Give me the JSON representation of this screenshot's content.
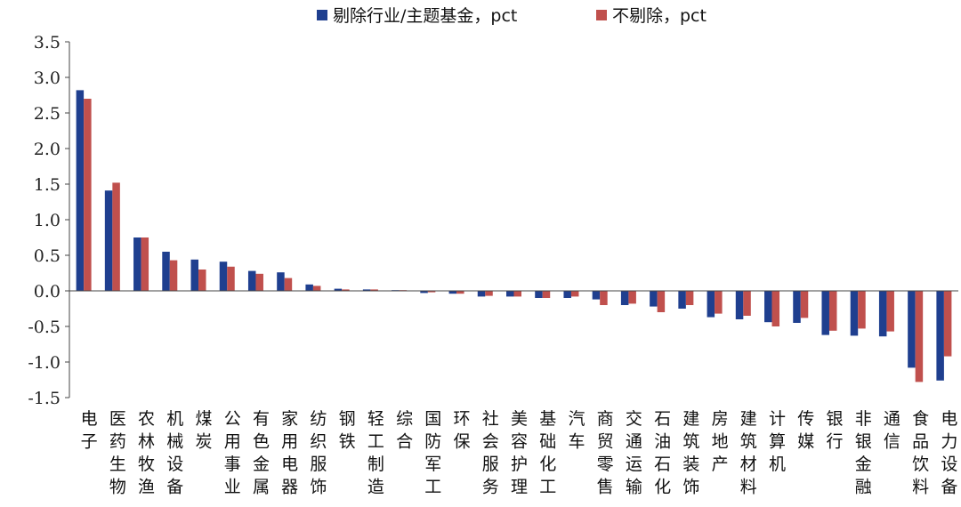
{
  "chart_data": {
    "type": "bar",
    "title": "",
    "xlabel": "",
    "ylabel": "",
    "ylim": [
      -1.5,
      3.5
    ],
    "yticks": [
      "3.5",
      "3.0",
      "2.5",
      "2.0",
      "1.5",
      "1.0",
      "0.5",
      "0.0",
      "-0.5",
      "-1.0",
      "-1.5"
    ],
    "grid": false,
    "legend_position": "top-center",
    "categories": [
      "电子",
      "医药生物",
      "农林牧渔",
      "机械设备",
      "煤炭",
      "公用事业",
      "有色金属",
      "家用电器",
      "纺织服饰",
      "钢铁",
      "轻工制造",
      "综合",
      "国防军工",
      "环保",
      "社会服务",
      "美容护理",
      "基础化工",
      "汽车",
      "商贸零售",
      "交通运输",
      "石油石化",
      "建筑装饰",
      "房地产",
      "建筑材料",
      "计算机",
      "传媒",
      "银行",
      "非银金融",
      "通信",
      "食品饮料",
      "电力设备"
    ],
    "series": [
      {
        "name": "剔除行业/主题基金，pct",
        "color": "#1f3f8f",
        "values": [
          2.82,
          1.41,
          0.75,
          0.55,
          0.44,
          0.41,
          0.28,
          0.26,
          0.09,
          0.03,
          0.02,
          0.01,
          -0.03,
          -0.04,
          -0.08,
          -0.08,
          -0.1,
          -0.1,
          -0.12,
          -0.2,
          -0.22,
          -0.25,
          -0.37,
          -0.4,
          -0.44,
          -0.45,
          -0.62,
          -0.63,
          -0.64,
          -1.08,
          -1.26
        ]
      },
      {
        "name": "不剔除，pct",
        "color": "#c0504d",
        "values": [
          2.7,
          1.52,
          0.75,
          0.43,
          0.3,
          0.34,
          0.24,
          0.18,
          0.07,
          0.02,
          0.02,
          0.01,
          -0.02,
          -0.04,
          -0.07,
          -0.08,
          -0.1,
          -0.08,
          -0.2,
          -0.18,
          -0.3,
          -0.2,
          -0.32,
          -0.35,
          -0.5,
          -0.38,
          -0.56,
          -0.53,
          -0.57,
          -1.28,
          -0.92
        ]
      }
    ]
  }
}
